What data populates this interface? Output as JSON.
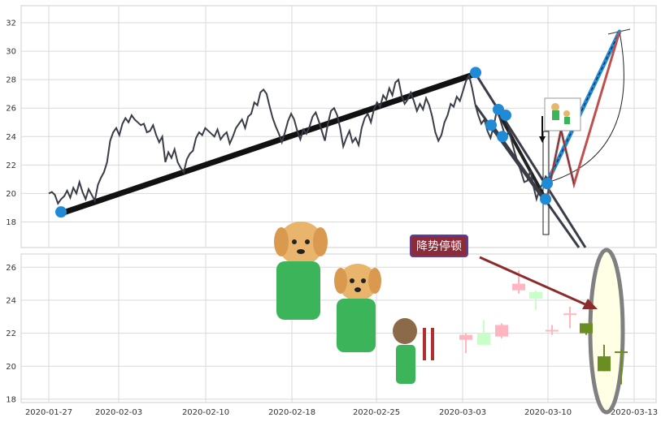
{
  "chart_data": [
    {
      "panel": "price",
      "type": "line",
      "ylim": [
        16.2,
        33.2
      ],
      "yticks": [
        "18",
        "20",
        "22",
        "24",
        "26",
        "28",
        "30",
        "32"
      ],
      "grid": true,
      "series": [
        {
          "values": [
            20.0,
            20.1,
            19.9,
            19.3,
            19.6,
            19.8,
            20.2,
            19.7,
            20.4,
            20.0,
            20.8,
            20.1,
            19.6,
            20.3,
            19.9,
            19.5,
            20.6,
            21.1,
            21.5,
            22.2,
            23.7,
            24.3,
            24.6,
            24.1,
            24.9,
            25.3,
            25.0,
            25.5,
            25.2,
            25.0,
            24.8,
            24.9,
            24.3,
            24.4,
            24.8,
            24.1,
            23.6,
            24.0,
            22.2,
            22.9,
            22.5,
            23.1,
            22.2,
            21.8,
            21.5,
            22.4,
            22.8,
            23.0,
            23.9,
            24.3,
            24.1,
            24.6,
            24.4,
            24.2,
            24.0,
            24.5,
            23.8,
            24.1,
            24.3,
            23.5,
            24.0,
            24.6,
            24.9,
            25.2,
            24.6,
            25.4,
            25.6,
            26.4,
            26.2,
            27.1,
            27.3,
            27.0,
            26.1,
            25.3,
            24.7,
            24.2,
            23.6,
            24.3,
            25.1,
            25.6,
            25.2,
            24.4,
            23.8,
            24.5,
            24.2,
            24.7,
            25.4,
            25.7,
            25.1,
            24.4,
            23.7,
            24.9,
            25.8,
            26.0,
            25.5,
            24.6,
            23.3,
            23.9,
            24.4,
            23.6,
            23.9,
            23.4,
            24.6,
            25.3,
            25.6,
            25.0,
            25.9,
            26.4,
            26.1,
            26.9,
            26.6,
            27.4,
            26.9,
            27.8,
            28.0,
            26.9,
            26.3,
            26.6,
            27.1,
            26.5,
            25.8,
            26.3,
            25.9,
            26.7,
            26.2,
            25.4,
            24.3,
            23.7,
            24.1,
            25.0,
            25.5,
            26.3,
            26.1,
            26.8,
            26.5,
            27.2,
            27.9,
            28.3,
            27.4,
            26.3,
            25.5,
            24.9,
            25.2,
            24.4,
            23.9,
            24.7,
            25.8,
            25.3,
            24.6,
            23.9,
            24.4,
            23.6,
            22.8,
            22.1,
            21.5,
            20.8,
            20.9,
            21.6,
            20.5,
            19.6,
            20.3,
            20.7,
            21.2,
            20.9
          ]
        }
      ],
      "markers": [
        18.7,
        28.5,
        24.8,
        25.9,
        24.0,
        25.5,
        20.7,
        19.6,
        31.4
      ]
    },
    {
      "panel": "candles",
      "type": "bar",
      "ylim": [
        17.8,
        26.8
      ],
      "yticks": [
        "18",
        "20",
        "22",
        "24",
        "26"
      ],
      "grid": true,
      "candles": [
        {
          "open": 21.6,
          "close": 21.9,
          "high": 22.0,
          "low": 20.8,
          "up": false
        },
        {
          "open": 21.3,
          "close": 22.0,
          "high": 22.8,
          "low": 21.3,
          "up": true
        },
        {
          "open": 22.5,
          "close": 21.8,
          "high": 22.6,
          "low": 21.7,
          "up": false
        },
        {
          "open": 25.0,
          "close": 24.6,
          "high": 25.8,
          "low": 24.4,
          "up": false
        },
        {
          "open": 24.1,
          "close": 24.5,
          "high": 24.6,
          "low": 23.4,
          "up": true
        },
        {
          "open": 22.2,
          "close": 22.2,
          "high": 22.5,
          "low": 21.9,
          "up": false
        },
        {
          "open": 23.2,
          "close": 23.2,
          "high": 23.6,
          "low": 22.3,
          "up": false
        },
        {
          "open": 22.0,
          "close": 22.6,
          "high": 22.6,
          "low": 21.9,
          "up": true
        },
        {
          "open": 19.7,
          "close": 20.6,
          "high": 21.3,
          "low": 19.7,
          "up": true
        },
        {
          "open": 20.9,
          "close": 20.9,
          "high": 21.0,
          "low": 18.9,
          "up": true
        }
      ]
    }
  ],
  "xticks": [
    "2020-01-27",
    "2020-02-03",
    "2020-02-10",
    "2020-02-18",
    "2020-02-25",
    "2020-03-03",
    "2020-03-10",
    "2020-03-13"
  ],
  "annotation": {
    "text": "降势停顿"
  },
  "colors": {
    "line": "#3a3d47",
    "marker": "#1f8ad6",
    "up_candle": "#6b8e23",
    "down_candle": "#ffb6c1",
    "pale_up": "#c8ffc8",
    "arrow": "#8b2c2c",
    "highlight_fill": "#ffffe6",
    "highlight_stroke": "#808080"
  }
}
